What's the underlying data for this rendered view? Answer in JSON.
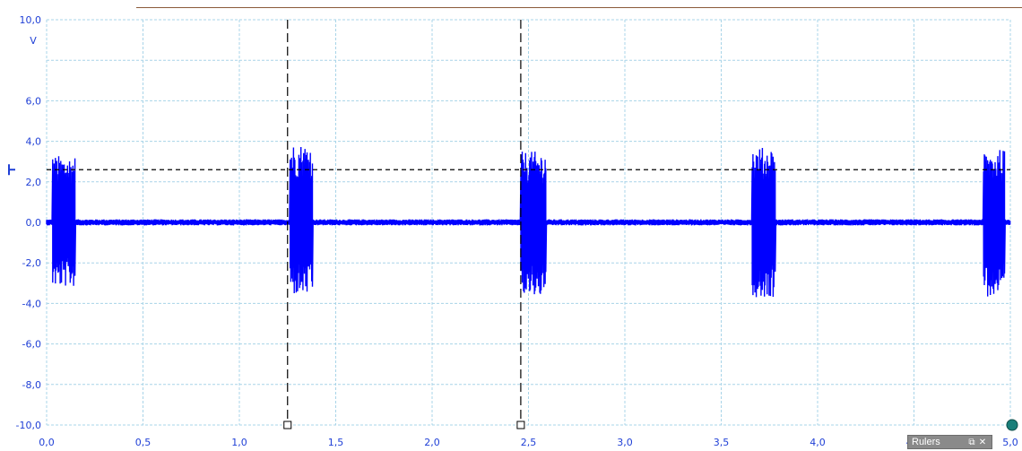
{
  "chart_data": {
    "type": "line",
    "unit_label": "V",
    "xlim": [
      0,
      5
    ],
    "ylim": [
      -10,
      10
    ],
    "x_ticks": [
      "0,0",
      "0,5",
      "1,0",
      "1,5",
      "2,0",
      "2,5",
      "3,0",
      "3,5",
      "4,0",
      "4,5",
      "5,0"
    ],
    "y_ticks": [
      "10,0",
      "6,0",
      "4,0",
      "2,0",
      "0,0",
      "-2,0",
      "-4,0",
      "-6,0",
      "-8,0",
      "-10,0"
    ],
    "grid": true,
    "series": [
      {
        "color": "#0000ff",
        "baseline": 0,
        "baseline_noise": 0.15,
        "bursts": [
          {
            "x_start": 0.03,
            "x_end": 0.15,
            "max": 3.3,
            "min": -3.2
          },
          {
            "x_start": 1.26,
            "x_end": 1.38,
            "max": 3.9,
            "min": -3.6
          },
          {
            "x_start": 2.46,
            "x_end": 2.59,
            "max": 3.5,
            "min": -3.7
          },
          {
            "x_start": 3.66,
            "x_end": 3.78,
            "max": 3.7,
            "min": -3.7
          },
          {
            "x_start": 4.86,
            "x_end": 4.97,
            "max": 3.6,
            "min": -3.7
          }
        ]
      }
    ],
    "rulers": {
      "vertical": [
        1.25,
        2.46
      ],
      "horizontal": [
        2.6
      ]
    }
  },
  "rulers_panel": {
    "title": "Rulers",
    "restore_icon": "⧉",
    "close_icon": "✕"
  },
  "colors": {
    "axis_text": "#1f3fd6",
    "grid": "#a8d4e8",
    "ruler": "#000000",
    "trigger_marker": "#1a7f7a"
  }
}
